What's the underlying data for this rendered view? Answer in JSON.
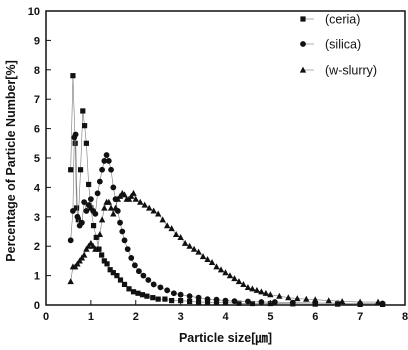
{
  "chart_data": {
    "type": "scatter",
    "title": "",
    "xlabel": "Particle size[㎛]",
    "ylabel": "Percentage of Particle Number[%]",
    "xlim": [
      0,
      8
    ],
    "ylim": [
      0,
      10
    ],
    "xticks": [
      "0",
      "1",
      "2",
      "3",
      "4",
      "5",
      "6",
      "7",
      "8"
    ],
    "yticks": [
      "0",
      "1",
      "2",
      "3",
      "4",
      "5",
      "6",
      "7",
      "8",
      "9",
      "10"
    ],
    "grid": false,
    "legend_position": "top-right",
    "series": [
      {
        "name": "(ceria)",
        "marker": "square",
        "color": "#111111",
        "x": [
          0.55,
          0.6,
          0.65,
          0.68,
          0.72,
          0.77,
          0.82,
          0.86,
          0.9,
          0.95,
          1.0,
          1.06,
          1.12,
          1.18,
          1.24,
          1.3,
          1.36,
          1.43,
          1.5,
          1.58,
          1.66,
          1.75,
          1.85,
          1.95,
          2.05,
          2.15,
          2.25,
          2.38,
          2.5,
          2.65,
          2.8,
          3.0,
          3.2,
          3.4,
          3.6,
          3.8,
          4.0,
          4.3,
          4.6,
          5.0,
          5.5,
          6.0,
          6.5,
          7.0,
          7.5
        ],
        "y": [
          4.6,
          7.8,
          5.5,
          3.3,
          2.9,
          4.6,
          6.6,
          6.1,
          5.5,
          4.1,
          3.3,
          2.7,
          2.3,
          1.9,
          1.7,
          1.5,
          1.4,
          1.2,
          1.1,
          1.0,
          0.85,
          0.7,
          0.55,
          0.45,
          0.4,
          0.35,
          0.3,
          0.25,
          0.2,
          0.2,
          0.15,
          0.15,
          0.12,
          0.1,
          0.1,
          0.08,
          0.08,
          0.06,
          0.05,
          0.05,
          0.04,
          0.03,
          0.03,
          0.02,
          0.02
        ]
      },
      {
        "name": "(silica)",
        "marker": "circle",
        "color": "#111111",
        "x": [
          0.55,
          0.6,
          0.63,
          0.66,
          0.7,
          0.75,
          0.8,
          0.85,
          0.9,
          0.95,
          1.0,
          1.05,
          1.1,
          1.15,
          1.2,
          1.25,
          1.3,
          1.35,
          1.4,
          1.45,
          1.5,
          1.55,
          1.6,
          1.65,
          1.7,
          1.75,
          1.82,
          1.9,
          1.98,
          2.07,
          2.17,
          2.28,
          2.4,
          2.55,
          2.7,
          2.85,
          3.0,
          3.2,
          3.4,
          3.6,
          3.8,
          4.0,
          4.2,
          4.5,
          4.8,
          5.1,
          5.5,
          6.0,
          6.5,
          7.0,
          7.5
        ],
        "y": [
          2.2,
          3.2,
          5.7,
          5.8,
          3.0,
          2.7,
          2.8,
          3.5,
          3.2,
          3.4,
          3.6,
          3.2,
          3.1,
          3.8,
          4.2,
          4.6,
          4.9,
          5.1,
          4.9,
          4.6,
          4.0,
          3.6,
          3.2,
          2.8,
          2.5,
          2.2,
          1.9,
          1.6,
          1.35,
          1.15,
          1.0,
          0.85,
          0.7,
          0.6,
          0.5,
          0.4,
          0.35,
          0.3,
          0.25,
          0.2,
          0.18,
          0.15,
          0.13,
          0.12,
          0.1,
          0.1,
          0.08,
          0.07,
          0.06,
          0.05,
          0.05
        ]
      },
      {
        "name": "(w-slurry)",
        "marker": "triangle",
        "color": "#111111",
        "x": [
          0.55,
          0.6,
          0.65,
          0.7,
          0.75,
          0.8,
          0.85,
          0.9,
          0.95,
          1.0,
          1.05,
          1.1,
          1.15,
          1.2,
          1.25,
          1.3,
          1.35,
          1.4,
          1.45,
          1.5,
          1.55,
          1.6,
          1.65,
          1.7,
          1.75,
          1.8,
          1.85,
          1.9,
          1.95,
          2.0,
          2.1,
          2.2,
          2.3,
          2.4,
          2.5,
          2.6,
          2.7,
          2.8,
          2.9,
          3.0,
          3.1,
          3.2,
          3.3,
          3.4,
          3.5,
          3.6,
          3.7,
          3.8,
          3.9,
          4.0,
          4.1,
          4.2,
          4.3,
          4.4,
          4.5,
          4.6,
          4.7,
          4.8,
          4.9,
          5.0,
          5.2,
          5.4,
          5.6,
          5.8,
          6.0,
          6.3,
          6.6,
          7.0,
          7.4
        ],
        "y": [
          0.8,
          1.3,
          1.3,
          1.4,
          1.5,
          1.6,
          1.7,
          1.9,
          2.0,
          2.1,
          2.0,
          1.9,
          1.9,
          2.4,
          2.9,
          3.3,
          3.5,
          3.5,
          3.3,
          3.1,
          3.3,
          3.6,
          3.7,
          3.8,
          3.75,
          3.6,
          3.6,
          3.7,
          3.8,
          3.6,
          3.5,
          3.4,
          3.3,
          3.2,
          3.1,
          2.9,
          2.7,
          2.6,
          2.4,
          2.3,
          2.1,
          2.0,
          1.9,
          1.8,
          1.65,
          1.55,
          1.45,
          1.3,
          1.2,
          1.1,
          1.0,
          0.9,
          0.8,
          0.7,
          0.6,
          0.55,
          0.5,
          0.45,
          0.4,
          0.35,
          0.3,
          0.25,
          0.22,
          0.2,
          0.18,
          0.15,
          0.12,
          0.1,
          0.1
        ]
      }
    ]
  }
}
